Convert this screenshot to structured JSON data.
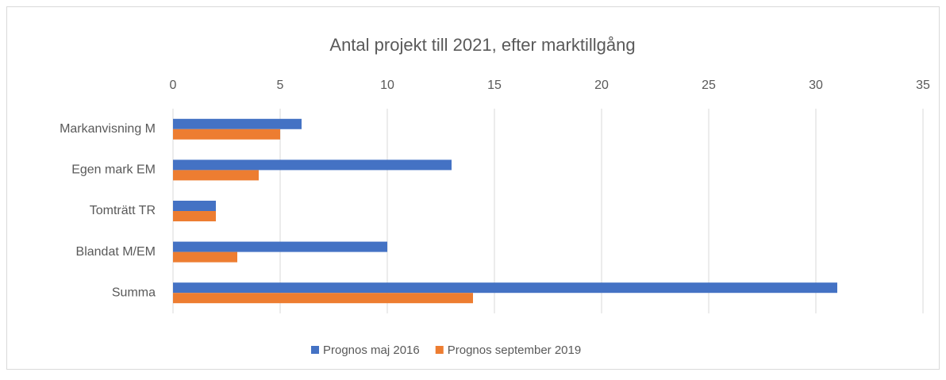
{
  "chart_data": {
    "type": "bar",
    "orientation": "horizontal",
    "title": "Antal projekt till 2021, efter marktillgång",
    "categories": [
      "Markanvisning M",
      "Egen mark EM",
      "Tomträtt TR",
      "Blandat M/EM",
      "Summa"
    ],
    "series": [
      {
        "name": "Prognos maj 2016",
        "color": "#4472c4",
        "values": [
          6,
          13,
          2,
          10,
          31
        ]
      },
      {
        "name": "Prognos september 2019",
        "color": "#ed7d31",
        "values": [
          5,
          4,
          2,
          3,
          14
        ]
      }
    ],
    "xlim": [
      0,
      35
    ],
    "xticks": [
      0,
      5,
      10,
      15,
      20,
      25,
      30,
      35
    ],
    "grid": true,
    "legend": "bottom"
  }
}
